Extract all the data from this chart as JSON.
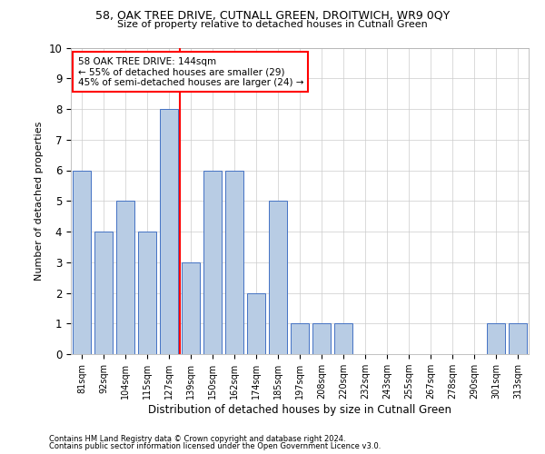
{
  "title1": "58, OAK TREE DRIVE, CUTNALL GREEN, DROITWICH, WR9 0QY",
  "title2": "Size of property relative to detached houses in Cutnall Green",
  "xlabel": "Distribution of detached houses by size in Cutnall Green",
  "ylabel": "Number of detached properties",
  "footer1": "Contains HM Land Registry data © Crown copyright and database right 2024.",
  "footer2": "Contains public sector information licensed under the Open Government Licence v3.0.",
  "annotation_line1": "58 OAK TREE DRIVE: 144sqm",
  "annotation_line2": "← 55% of detached houses are smaller (29)",
  "annotation_line3": "45% of semi-detached houses are larger (24) →",
  "categories": [
    "81sqm",
    "92sqm",
    "104sqm",
    "115sqm",
    "127sqm",
    "139sqm",
    "150sqm",
    "162sqm",
    "174sqm",
    "185sqm",
    "197sqm",
    "208sqm",
    "220sqm",
    "232sqm",
    "243sqm",
    "255sqm",
    "267sqm",
    "278sqm",
    "290sqm",
    "301sqm",
    "313sqm"
  ],
  "values": [
    6,
    4,
    5,
    4,
    8,
    3,
    6,
    6,
    2,
    5,
    1,
    1,
    1,
    0,
    0,
    0,
    0,
    0,
    0,
    1,
    1
  ],
  "bar_color": "#b8cce4",
  "bar_edge_color": "#4472c4",
  "highlight_color": "#ff0000",
  "highlight_index": 5,
  "ylim": [
    0,
    10
  ],
  "yticks": [
    0,
    1,
    2,
    3,
    4,
    5,
    6,
    7,
    8,
    9,
    10
  ],
  "grid_color": "#cccccc",
  "bg_color": "#ffffff",
  "annotation_box_color": "#ff0000"
}
